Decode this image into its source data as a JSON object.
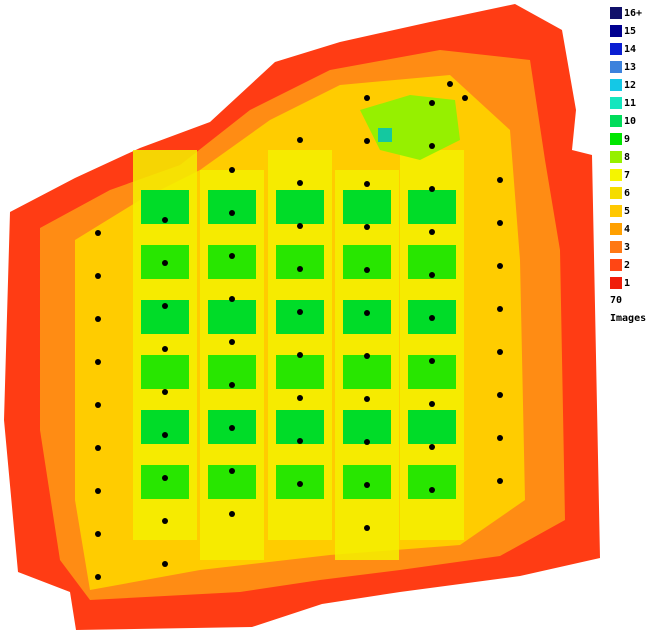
{
  "legend": {
    "items": [
      {
        "label": "16+",
        "color": "#10106a"
      },
      {
        "label": 15,
        "color": "#000090"
      },
      {
        "label": 14,
        "color": "#0a1ed2"
      },
      {
        "label": 13,
        "color": "#3c82dc"
      },
      {
        "label": 12,
        "color": "#14c8e6"
      },
      {
        "label": 11,
        "color": "#14e6be"
      },
      {
        "label": 10,
        "color": "#00dc5a"
      },
      {
        "label": 9,
        "color": "#00e600"
      },
      {
        "label": 8,
        "color": "#96f000"
      },
      {
        "label": 7,
        "color": "#f5f500"
      },
      {
        "label": 6,
        "color": "#f5dc00"
      },
      {
        "label": 5,
        "color": "#ffc800"
      },
      {
        "label": 4,
        "color": "#ffa000"
      },
      {
        "label": 3,
        "color": "#ff7814"
      },
      {
        "label": 2,
        "color": "#ff4614"
      },
      {
        "label": 1,
        "color": "#f01e0a"
      }
    ],
    "image_count": 70,
    "image_count_label": "Images"
  }
}
